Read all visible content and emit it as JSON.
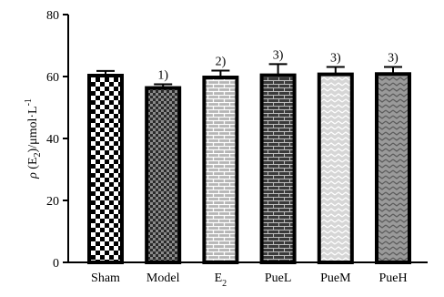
{
  "chart_data": {
    "type": "bar",
    "categories": [
      "Sham",
      "Model",
      "E2",
      "PueL",
      "PueM",
      "PueH"
    ],
    "category_labels": [
      {
        "text": "Sham",
        "sub": ""
      },
      {
        "text": "Model",
        "sub": ""
      },
      {
        "text": "E",
        "sub": "2"
      },
      {
        "text": "PueL",
        "sub": ""
      },
      {
        "text": "PueM",
        "sub": ""
      },
      {
        "text": "PueH",
        "sub": ""
      }
    ],
    "values": [
      60.3,
      56.3,
      59.7,
      60.4,
      60.7,
      60.8
    ],
    "errors": [
      1.5,
      1.2,
      2.2,
      3.6,
      2.4,
      2.3
    ],
    "annotations": [
      "",
      "1)",
      "2)",
      "3)",
      "3)",
      "3)"
    ],
    "patterns": [
      "checker",
      "checker-small",
      "brick-light",
      "brick-dark",
      "chevron-light",
      "zigzag"
    ],
    "ylabel": {
      "rho": "ρ",
      "paren_open": "(E",
      "sub": "2",
      "rest": ")/μmol·L",
      "sup": "-1"
    },
    "ylim": [
      0,
      80
    ],
    "yticks": [
      0,
      20,
      40,
      60,
      80
    ],
    "grid": false,
    "legend": "none"
  }
}
